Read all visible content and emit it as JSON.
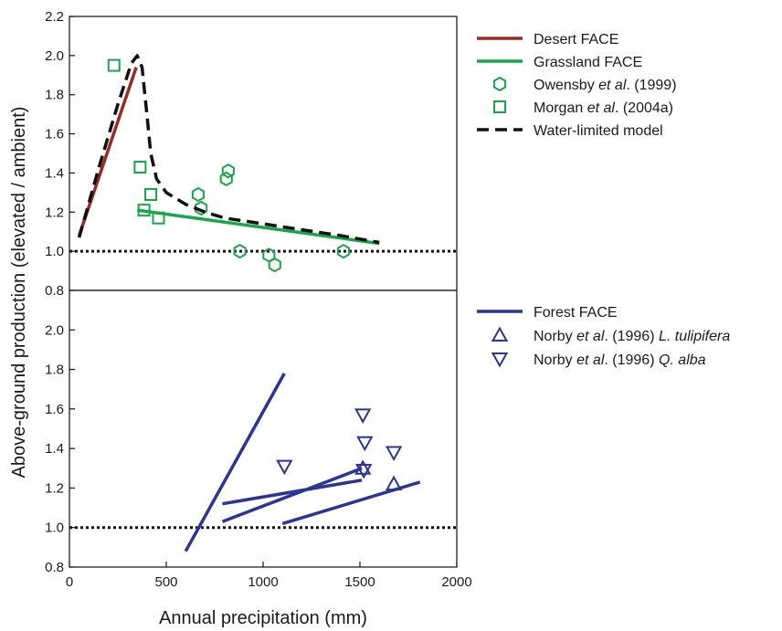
{
  "chart_data": {
    "type": "line",
    "xlabel": "Annual precipitation (mm)",
    "ylabel": "Above-ground production (elevated / ambient)",
    "xlim": [
      0,
      2000
    ],
    "x_ticks": [
      "0",
      "500",
      "1000",
      "1500",
      "2000"
    ],
    "x_tick_values": [
      0,
      500,
      1000,
      1500,
      2000
    ],
    "grid": false,
    "panels": [
      {
        "id": "top",
        "ylim": [
          0.8,
          2.2
        ],
        "y_ticks": [
          "0.8",
          "1.0",
          "1.2",
          "1.4",
          "1.6",
          "1.8",
          "2.0",
          "2.2"
        ],
        "y_tick_values": [
          0.8,
          1.0,
          1.2,
          1.4,
          1.6,
          1.8,
          2.0,
          2.2
        ],
        "reference_line": {
          "y": 1.0,
          "style": "dotted"
        },
        "legend_position": "right",
        "series": [
          {
            "kind": "line",
            "name": "Desert FACE",
            "color": "#9b2a24",
            "segments": [
              [
                {
                  "x": 50,
                  "y": 1.08
                },
                {
                  "x": 345,
                  "y": 1.94
                }
              ]
            ]
          },
          {
            "kind": "line",
            "name": "Grassland FACE",
            "color": "#17a74a",
            "segments": [
              [
                {
                  "x": 350,
                  "y": 1.21
                },
                {
                  "x": 1600,
                  "y": 1.04
                }
              ]
            ]
          },
          {
            "kind": "points",
            "marker": "hexagon",
            "name": "Owensby et al. (1999)",
            "color": "#17a74a",
            "points": [
              {
                "x": 665,
                "y": 1.29
              },
              {
                "x": 680,
                "y": 1.22
              },
              {
                "x": 810,
                "y": 1.37
              },
              {
                "x": 820,
                "y": 1.41
              },
              {
                "x": 880,
                "y": 1.0
              },
              {
                "x": 1030,
                "y": 0.98
              },
              {
                "x": 1060,
                "y": 0.93
              },
              {
                "x": 1415,
                "y": 1.0
              }
            ]
          },
          {
            "kind": "points",
            "marker": "square",
            "name": "Morgan et al. (2004a)",
            "color": "#17a74a",
            "points": [
              {
                "x": 230,
                "y": 1.95
              },
              {
                "x": 365,
                "y": 1.43
              },
              {
                "x": 385,
                "y": 1.21
              },
              {
                "x": 420,
                "y": 1.29
              },
              {
                "x": 460,
                "y": 1.17
              }
            ]
          },
          {
            "kind": "line",
            "name": "Water-limited model",
            "color": "#111111",
            "dashed": true,
            "segments": [
              [
                {
                  "x": 50,
                  "y": 1.07
                },
                {
                  "x": 150,
                  "y": 1.42
                },
                {
                  "x": 250,
                  "y": 1.75
                },
                {
                  "x": 320,
                  "y": 1.96
                },
                {
                  "x": 350,
                  "y": 2.0
                },
                {
                  "x": 375,
                  "y": 1.94
                },
                {
                  "x": 400,
                  "y": 1.7
                },
                {
                  "x": 420,
                  "y": 1.5
                },
                {
                  "x": 450,
                  "y": 1.37
                },
                {
                  "x": 500,
                  "y": 1.3
                },
                {
                  "x": 600,
                  "y": 1.24
                },
                {
                  "x": 700,
                  "y": 1.2
                },
                {
                  "x": 800,
                  "y": 1.17
                },
                {
                  "x": 900,
                  "y": 1.155
                },
                {
                  "x": 1000,
                  "y": 1.14
                },
                {
                  "x": 1200,
                  "y": 1.11
                },
                {
                  "x": 1400,
                  "y": 1.08
                },
                {
                  "x": 1600,
                  "y": 1.045
                }
              ]
            ]
          }
        ]
      },
      {
        "id": "bottom",
        "ylim": [
          0.8,
          2.2
        ],
        "y_ticks": [
          "0.8",
          "1.0",
          "1.2",
          "1.4",
          "1.6",
          "1.8",
          "2.0"
        ],
        "y_tick_values": [
          0.8,
          1.0,
          1.2,
          1.4,
          1.6,
          1.8,
          2.0
        ],
        "reference_line": {
          "y": 1.0,
          "style": "dotted"
        },
        "legend_position": "right",
        "series": [
          {
            "kind": "line",
            "name": "Forest FACE",
            "color": "#2b3595",
            "segments": [
              [
                {
                  "x": 600,
                  "y": 0.88
                },
                {
                  "x": 1110,
                  "y": 1.78
                }
              ],
              [
                {
                  "x": 790,
                  "y": 1.12
                },
                {
                  "x": 1510,
                  "y": 1.24
                }
              ],
              [
                {
                  "x": 790,
                  "y": 1.03
                },
                {
                  "x": 1510,
                  "y": 1.3
                }
              ],
              [
                {
                  "x": 1100,
                  "y": 1.02
                },
                {
                  "x": 1810,
                  "y": 1.23
                }
              ]
            ]
          },
          {
            "kind": "points",
            "marker": "triangle-up",
            "name": "Norby et al. (1996) L. tulipifera",
            "color": "#2b3595",
            "points": [
              {
                "x": 1515,
                "y": 1.3
              },
              {
                "x": 1675,
                "y": 1.22
              }
            ]
          },
          {
            "kind": "points",
            "marker": "triangle-down",
            "name": "Norby et al. (1996) Q. alba",
            "color": "#2b3595",
            "points": [
              {
                "x": 1110,
                "y": 1.31
              },
              {
                "x": 1515,
                "y": 1.57
              },
              {
                "x": 1525,
                "y": 1.43
              },
              {
                "x": 1520,
                "y": 1.29
              },
              {
                "x": 1675,
                "y": 1.38
              }
            ]
          }
        ]
      }
    ]
  },
  "legends": {
    "top": [
      {
        "label_parts": [
          "Desert FACE"
        ],
        "italic": [],
        "color": "#9b2a24",
        "kind": "line"
      },
      {
        "label_parts": [
          "Grassland FACE"
        ],
        "italic": [],
        "color": "#17a74a",
        "kind": "line"
      },
      {
        "label_parts": [
          "Owensby ",
          "et al",
          ". (1999)"
        ],
        "italic": [
          1
        ],
        "color": "#17a74a",
        "kind": "hexagon"
      },
      {
        "label_parts": [
          "Morgan ",
          "et al",
          ". (2004a)"
        ],
        "italic": [
          1
        ],
        "color": "#17a74a",
        "kind": "square"
      },
      {
        "label_parts": [
          "Water-limited model"
        ],
        "italic": [],
        "color": "#111111",
        "kind": "dashed"
      }
    ],
    "bottom": [
      {
        "label_parts": [
          "Forest FACE"
        ],
        "italic": [],
        "color": "#2b3595",
        "kind": "line"
      },
      {
        "label_parts": [
          "Norby ",
          "et al",
          ". (1996) ",
          "L. tulipifera"
        ],
        "italic": [
          1,
          3
        ],
        "color": "#2b3595",
        "kind": "triangle-up"
      },
      {
        "label_parts": [
          "Norby ",
          "et al",
          ". (1996) ",
          "Q. alba"
        ],
        "italic": [
          1,
          3
        ],
        "color": "#2b3595",
        "kind": "triangle-down"
      }
    ]
  }
}
